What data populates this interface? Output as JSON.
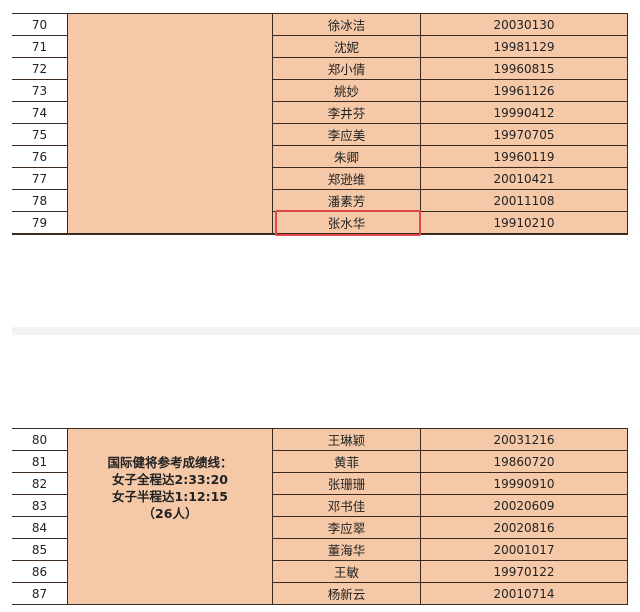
{
  "highlight_color": "#e04848",
  "cell_color": "#f5c9a8",
  "table1": {
    "rows": [
      {
        "num": "70",
        "name": "徐冰洁",
        "date": "20030130"
      },
      {
        "num": "71",
        "name": "沈妮",
        "date": "19981129"
      },
      {
        "num": "72",
        "name": "郑小倩",
        "date": "19960815"
      },
      {
        "num": "73",
        "name": "姚妙",
        "date": "19961126"
      },
      {
        "num": "74",
        "name": "李井芬",
        "date": "19990412"
      },
      {
        "num": "75",
        "name": "李应美",
        "date": "19970705"
      },
      {
        "num": "76",
        "name": "朱卿",
        "date": "19960119"
      },
      {
        "num": "77",
        "name": "郑逊维",
        "date": "20010421"
      },
      {
        "num": "78",
        "name": "潘素芳",
        "date": "20011108"
      },
      {
        "num": "79",
        "name": "张水华",
        "date": "19910210",
        "highlighted": true
      }
    ]
  },
  "table2": {
    "group": {
      "line1": "国际健将参考成绩线：",
      "line2": "女子全程达2:33:20",
      "line3": "女子半程达1:12:15",
      "line4": "（26人）"
    },
    "rows": [
      {
        "num": "80",
        "name": "王琳颖",
        "date": "20031216"
      },
      {
        "num": "81",
        "name": "黄菲",
        "date": "19860720"
      },
      {
        "num": "82",
        "name": "张珊珊",
        "date": "19990910"
      },
      {
        "num": "83",
        "name": "邓书佳",
        "date": "20020609"
      },
      {
        "num": "84",
        "name": "李应翠",
        "date": "20020816"
      },
      {
        "num": "85",
        "name": "董海华",
        "date": "20001017"
      },
      {
        "num": "86",
        "name": "王敏",
        "date": "19970122"
      },
      {
        "num": "87",
        "name": "杨新云",
        "date": "20010714"
      }
    ]
  }
}
